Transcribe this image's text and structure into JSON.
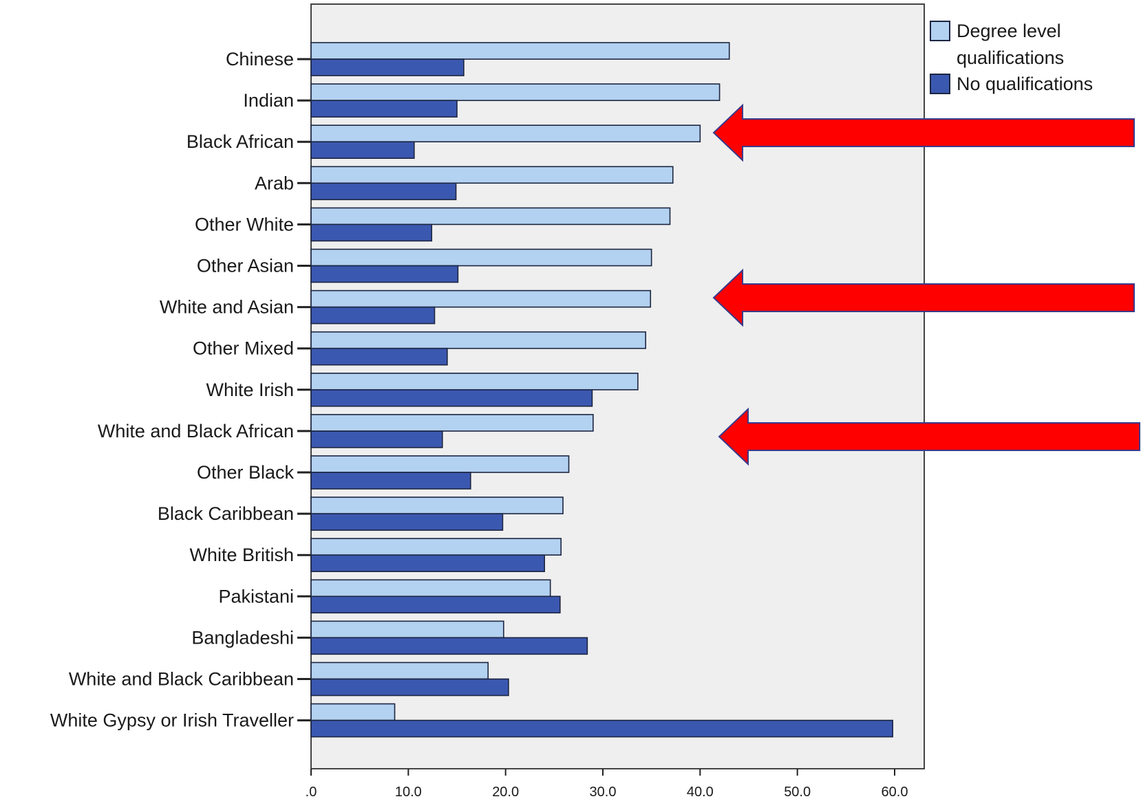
{
  "chart_data": {
    "type": "bar",
    "orientation": "horizontal",
    "categories": [
      "Chinese",
      "Indian",
      "Black African",
      "Arab",
      "Other White",
      "Other Asian",
      "White and Asian",
      "Other Mixed",
      "White Irish",
      "White and Black African",
      "Other Black",
      "Black Caribbean",
      "White British",
      "Pakistani",
      "Bangladeshi",
      "White and Black Caribbean",
      "White Gypsy or Irish Traveller"
    ],
    "series": [
      {
        "name": "Degree level qualifications",
        "color": "#b3d1f0",
        "values": [
          43.0,
          42.0,
          40.0,
          37.2,
          36.9,
          35.0,
          34.9,
          34.4,
          33.6,
          29.0,
          26.5,
          25.9,
          25.7,
          24.6,
          19.8,
          18.2,
          8.6
        ]
      },
      {
        "name": "No qualifications",
        "color": "#3b58b0",
        "values": [
          15.7,
          15.0,
          10.6,
          14.9,
          12.4,
          15.1,
          12.7,
          14.0,
          28.9,
          13.5,
          16.4,
          19.7,
          24.0,
          25.6,
          28.4,
          20.3,
          59.8
        ]
      }
    ],
    "xticks": [
      ".0",
      "10.0",
      "20.0",
      "30.0",
      "40.0",
      "50.0",
      "60.0"
    ],
    "xlim": [
      0,
      63
    ],
    "title": "",
    "xlabel": "",
    "ylabel": "",
    "legend": {
      "position": "top-right",
      "labels": [
        "Degree level qualifications",
        "No qualifications"
      ]
    },
    "grid": false,
    "plot_background": "#efefef",
    "annotations": {
      "arrows": [
        {
          "points_to": "Black African",
          "color": "#ff0000"
        },
        {
          "points_to": "White and Asian",
          "color": "#ff0000"
        },
        {
          "points_to": "White and Black African",
          "color": "#ff0000"
        }
      ]
    }
  }
}
